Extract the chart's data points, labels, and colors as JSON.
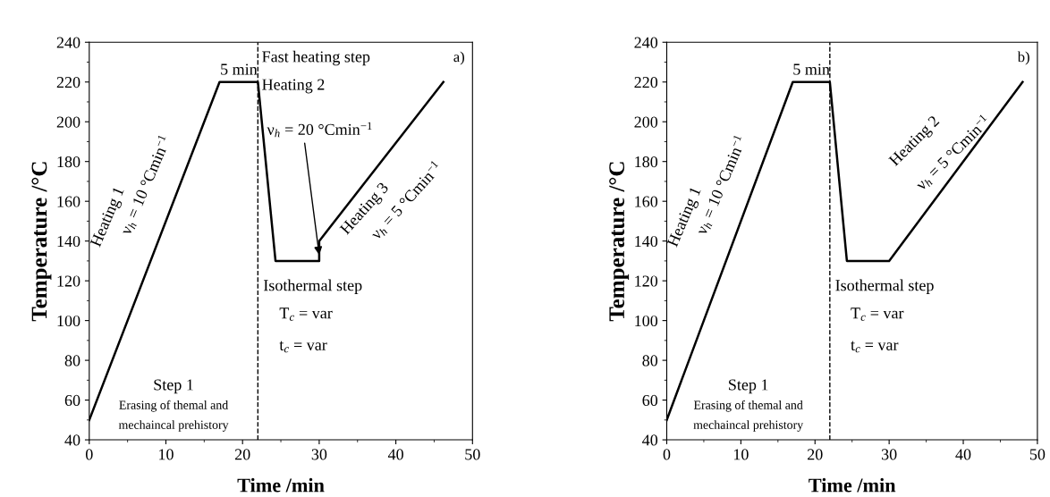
{
  "chart_data": [
    {
      "type": "line",
      "xlabel": "Time /min",
      "ylabel": "Temperature /°C",
      "xlim": [
        0,
        50
      ],
      "ylim": [
        40,
        240
      ],
      "xticks": [
        0,
        10,
        20,
        30,
        40,
        50
      ],
      "yticks": [
        40,
        60,
        80,
        100,
        120,
        140,
        160,
        180,
        200,
        220,
        240
      ],
      "grid": false,
      "legend": false,
      "marker": "none",
      "line_style": "solid",
      "series": [
        {
          "color": "#000000",
          "x": [
            0,
            17,
            22,
            24.3,
            30,
            30,
            46.2
          ],
          "values": [
            50,
            220,
            220,
            130,
            130,
            140,
            220
          ]
        }
      ],
      "ref_lines": [
        {
          "axis": "x",
          "value": 22,
          "color": "#000000",
          "line_style": "dashed"
        }
      ],
      "annotations": [
        {
          "text": "5 min",
          "x": 19.5,
          "y": 222
        },
        {
          "text": "Fast heating step",
          "x": 22.5,
          "y": 232
        },
        {
          "text": "Heating 2",
          "x": 22.5,
          "y": 218
        },
        {
          "text": "ν$_{h}$ = 20 °Cmin$^{−1}$",
          "x": 30,
          "y": 133
        },
        "a)",
        "Heating 1",
        "ν$_{h}$ = 10 °Cmin$^{−1}$",
        "Heating 3",
        "ν$_{h}$ = 5 °Cmin$^{−1}$",
        "Isothermal step",
        "T$_{c}$ = var",
        "t$_{c}$ = var",
        "Step 1",
        "Erasing of themal and",
        "mechaincal prehistory"
      ]
    },
    {
      "type": "line",
      "xlabel": "Time /min",
      "ylabel": "Temperature /°C",
      "xlim": [
        0,
        50
      ],
      "ylim": [
        40,
        240
      ],
      "xticks": [
        0,
        10,
        20,
        30,
        40,
        50
      ],
      "yticks": [
        40,
        60,
        80,
        100,
        120,
        140,
        160,
        180,
        200,
        220,
        240
      ],
      "grid": false,
      "legend": false,
      "marker": "none",
      "line_style": "solid",
      "series": [
        {
          "color": "#000000",
          "x": [
            0,
            17,
            22,
            24.3,
            30,
            48
          ],
          "values": [
            50,
            220,
            220,
            130,
            130,
            220
          ]
        }
      ],
      "ref_lines": [
        {
          "axis": "x",
          "value": 22,
          "color": "#000000",
          "line_style": "dashed"
        }
      ],
      "annotations": [
        {
          "text": "5 min",
          "x": 19.5,
          "y": 222
        },
        "b)",
        "Heating 1",
        "ν$_{h}$ = 10 °Cmin$^{−1}$",
        "Heating 2",
        "ν$_{h}$ = 5 °Cmin$^{−1}$",
        "Isothermal step",
        "T$_{c}$ = var",
        "t$_{c}$ = var",
        "Step 1",
        "Erasing of themal and",
        "mechaincal prehistory"
      ]
    }
  ]
}
